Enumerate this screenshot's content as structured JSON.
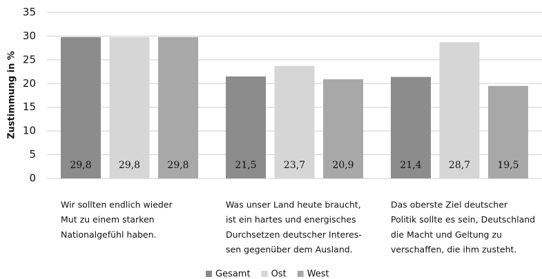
{
  "chart_data": {
    "type": "bar",
    "y_label": "Zustimmung in %",
    "categories": [
      [
        "Wir sollten endlich wieder",
        "Mut zu einem starken",
        "Nationalgefühl haben."
      ],
      [
        "Was unser Land heute braucht,",
        "ist ein hartes und energisches",
        "Durchsetzen deutscher Interes-",
        "sen gegenüber dem Ausland."
      ],
      [
        "Das oberste Ziel deutscher",
        "Politik sollte es sein, Deutschland",
        "die Macht und Geltung zu",
        "verschaffen, die ihm zusteht."
      ]
    ],
    "series": [
      {
        "name": "Gesamt",
        "color": "#8c8c8c",
        "values": [
          29.8,
          21.5,
          21.4
        ],
        "value_labels": [
          "29,8",
          "21,5",
          "21,4"
        ]
      },
      {
        "name": "Ost",
        "color": "#d6d6d6",
        "values": [
          29.8,
          23.7,
          28.7
        ],
        "value_labels": [
          "29,8",
          "23,7",
          "28,7"
        ]
      },
      {
        "name": "West",
        "color": "#a8a8a8",
        "values": [
          29.8,
          20.9,
          19.5
        ],
        "value_labels": [
          "29,8",
          "20,9",
          "19,5"
        ]
      }
    ],
    "ylim": [
      0,
      35
    ],
    "yticks": [
      0,
      5,
      10,
      15,
      20,
      25,
      30,
      35
    ],
    "grid": true,
    "legend": "bottom"
  }
}
